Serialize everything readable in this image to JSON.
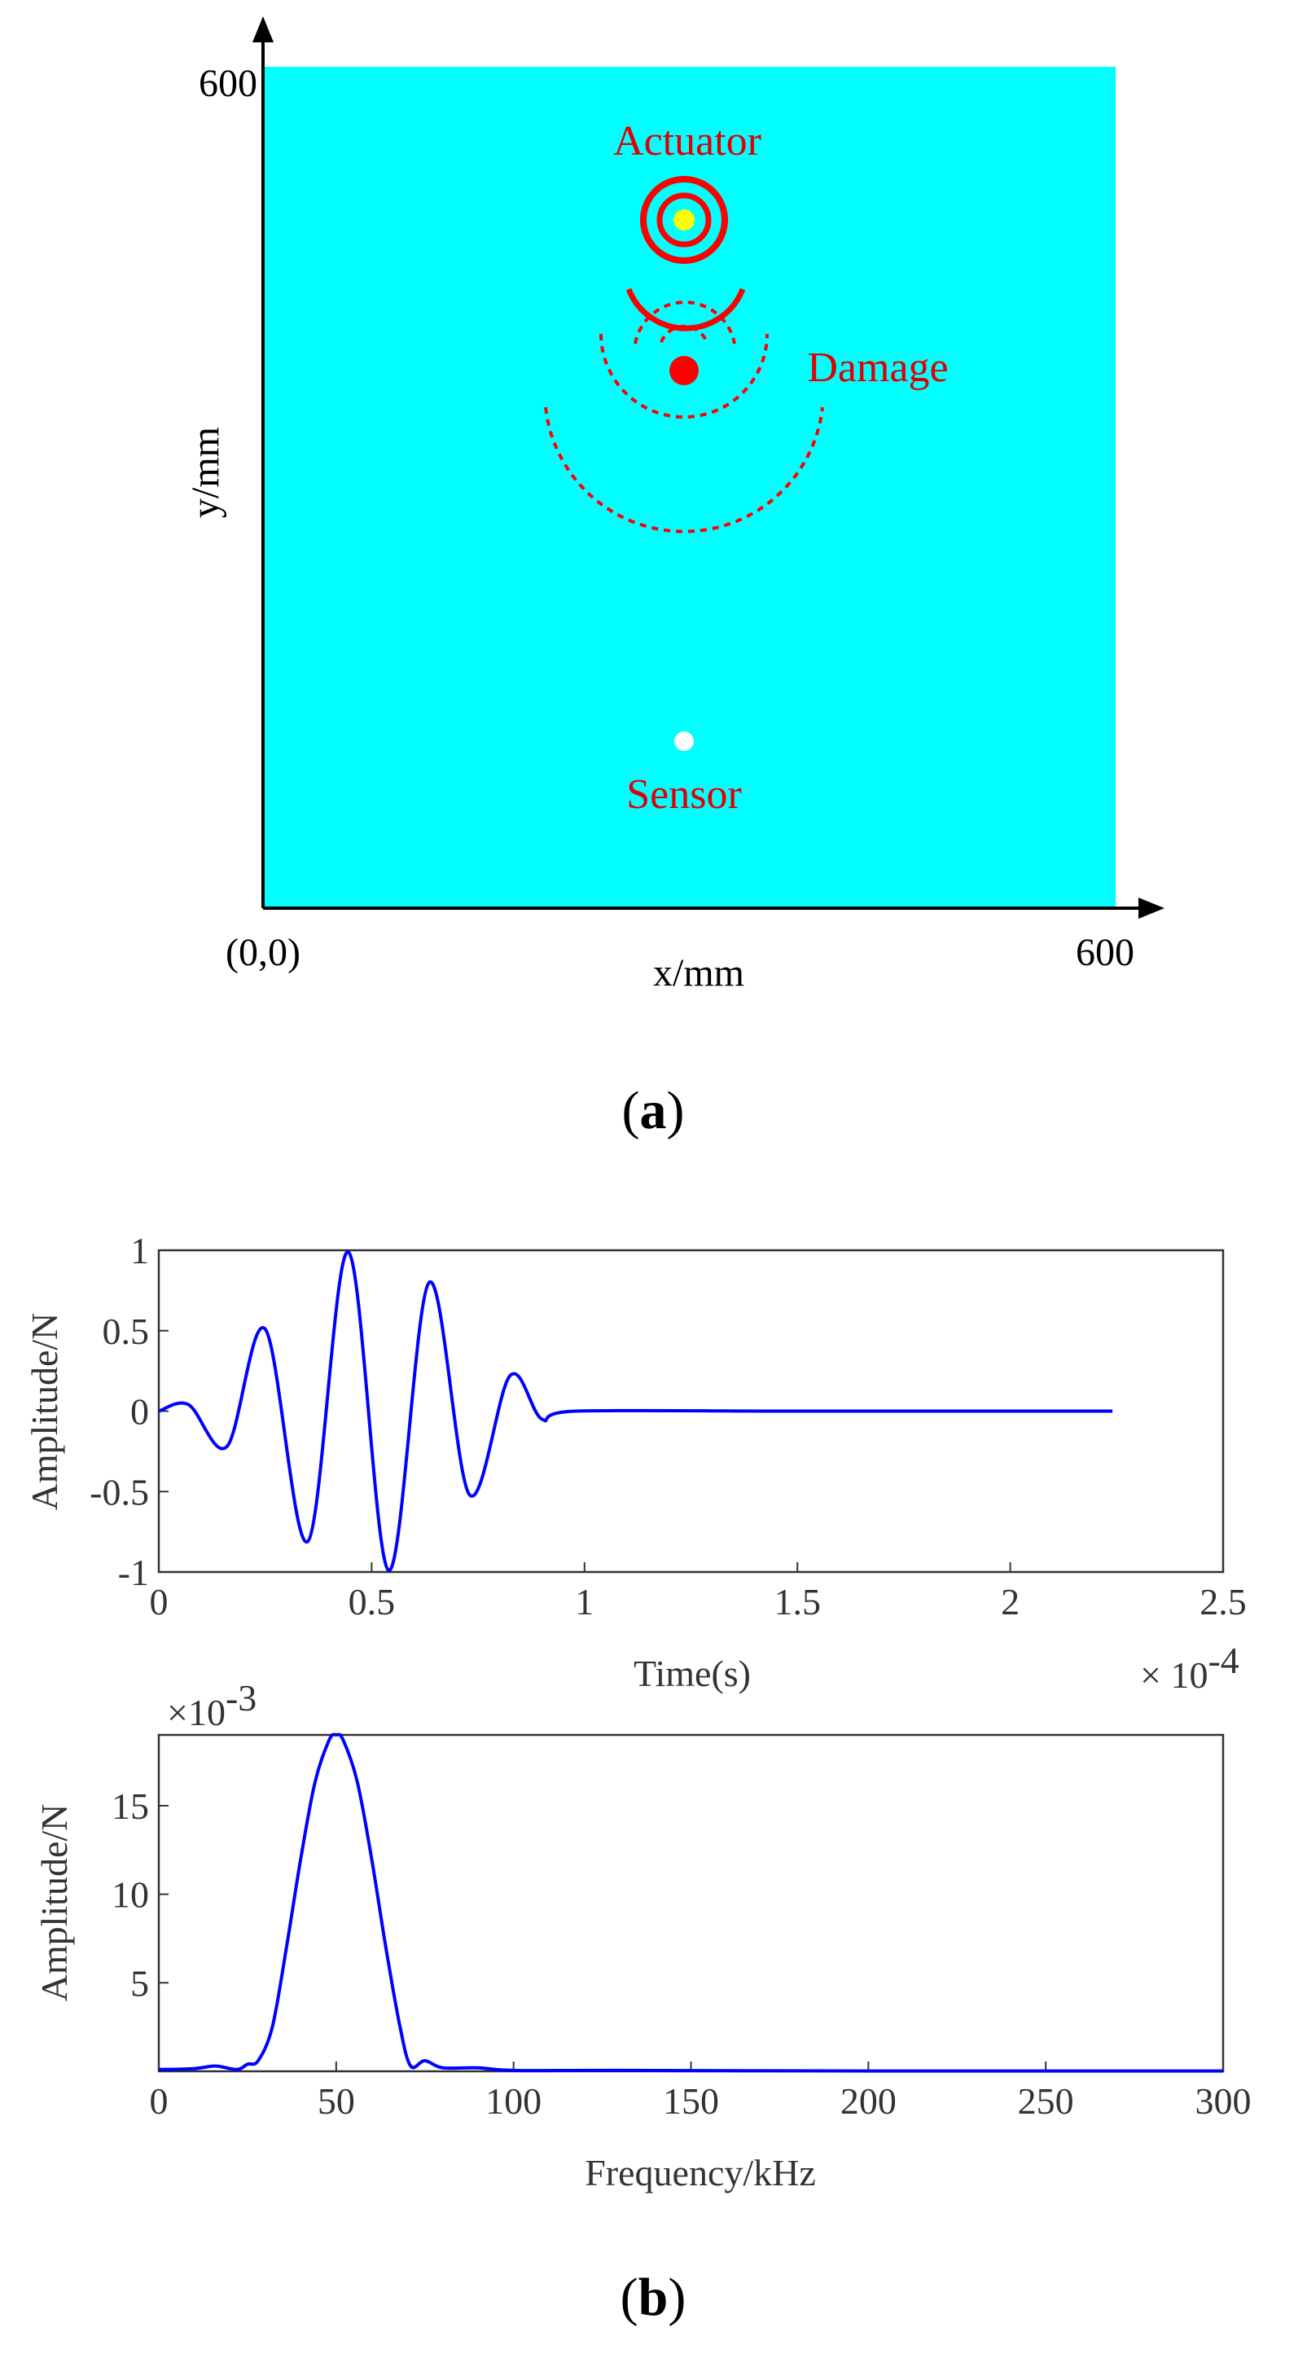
{
  "panel_a": {
    "label_open": "(",
    "label_letter": "a",
    "label_close": ")",
    "plate_color": "#00ffff",
    "damage_color": "#ff0000",
    "actuator_center_color": "#ffff00",
    "sensor_color": "#ffffff",
    "y_tick_top": "600",
    "x_tick_right": "600",
    "origin_label": "(0,0)",
    "xlabel": "x/mm",
    "ylabel": "y/mm",
    "actuator_label": "Actuator",
    "damage_label": "Damage",
    "sensor_label": "Sensor"
  },
  "panel_b": {
    "label_open": "(",
    "label_letter": "b",
    "label_close": ")"
  },
  "chart_data": [
    {
      "type": "line",
      "name": "time-domain excitation",
      "title": "",
      "xlabel": "Time(s)",
      "ylabel": "Amplitude/N",
      "x_scale_label": "× 10",
      "x_scale_exponent": "-4",
      "xlim": [
        0,
        2.5
      ],
      "ylim": [
        -1,
        1
      ],
      "xticks": [
        "0",
        "0.5",
        "1",
        "1.5",
        "2",
        "2.5"
      ],
      "yticks": [
        "1",
        "0.5",
        "0",
        "-0.5",
        "-1"
      ],
      "line_color": "#0000ff",
      "series": [
        {
          "name": "excitation",
          "x": [
            0,
            0.07,
            0.16,
            0.25,
            0.35,
            0.445,
            0.54,
            0.635,
            0.73,
            0.825,
            0.9,
            0.98,
            1.5,
            2.24
          ],
          "y": [
            0,
            0.04,
            -0.22,
            0.51,
            -0.81,
            0.99,
            -0.99,
            0.8,
            -0.52,
            0.22,
            -0.05,
            0,
            0,
            0
          ]
        }
      ]
    },
    {
      "type": "line",
      "name": "frequency spectrum",
      "title": "",
      "xlabel": "Frequency/kHz",
      "ylabel": "Amplitude/N",
      "y_scale_label": "×10",
      "y_scale_exponent": "-3",
      "xlim": [
        0,
        300
      ],
      "ylim": [
        0,
        19
      ],
      "xticks": [
        "0",
        "50",
        "100",
        "150",
        "200",
        "250",
        "300"
      ],
      "yticks": [
        "15",
        "10",
        "5"
      ],
      "line_color": "#0000ff",
      "series": [
        {
          "name": "spectrum",
          "x": [
            0,
            10,
            16,
            22,
            25,
            28,
            32,
            36,
            40,
            44,
            48,
            50,
            52,
            56,
            60,
            64,
            68,
            71,
            75,
            80,
            90,
            100,
            130,
            200,
            300
          ],
          "y": [
            0.1,
            0.15,
            0.3,
            0.1,
            0.4,
            0.6,
            2.5,
            7.0,
            12.0,
            16.3,
            18.7,
            19.0,
            18.7,
            16.3,
            12.0,
            7.0,
            2.5,
            0.3,
            0.6,
            0.2,
            0.2,
            0.05,
            0.05,
            0.02,
            0.02
          ]
        }
      ]
    }
  ]
}
